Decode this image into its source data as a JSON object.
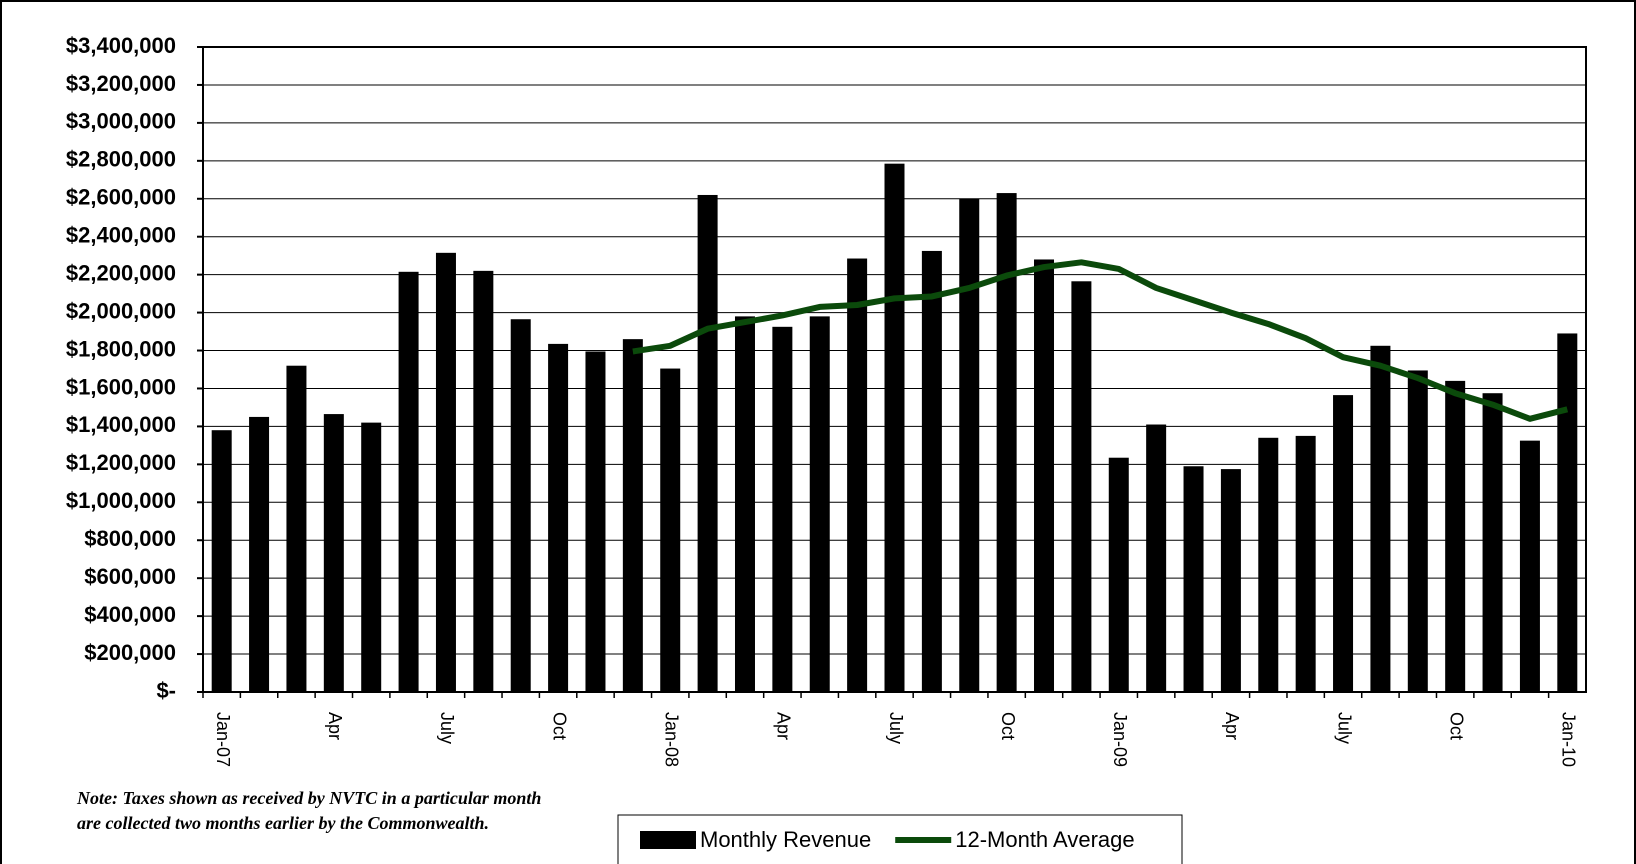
{
  "chart_data": {
    "type": "bar_line",
    "categories": [
      "Jan-07",
      null,
      null,
      "Apr",
      null,
      null,
      "July",
      null,
      null,
      "Oct",
      null,
      null,
      "Jan-08",
      null,
      null,
      "Apr",
      null,
      null,
      "July",
      null,
      null,
      "Oct",
      null,
      null,
      "Jan-09",
      null,
      null,
      "Apr",
      null,
      null,
      "July",
      null,
      null,
      "Oct",
      null,
      null,
      "Jan-10"
    ],
    "series": [
      {
        "name": "Monthly Revenue",
        "type": "bar",
        "color": "#000000",
        "values": [
          1380000,
          1450000,
          1720000,
          1465000,
          1420000,
          2215000,
          2315000,
          2220000,
          1965000,
          1835000,
          1795000,
          1860000,
          1705000,
          2620000,
          1980000,
          1925000,
          1980000,
          2285000,
          2785000,
          2325000,
          2600000,
          2630000,
          2280000,
          2165000,
          1235000,
          1410000,
          1190000,
          1175000,
          1340000,
          1350000,
          1565000,
          1825000,
          1695000,
          1640000,
          1575000,
          1325000,
          1890000
        ]
      },
      {
        "name": "12-Month Average",
        "type": "line",
        "color": "#0b4a0b",
        "values": [
          null,
          null,
          null,
          null,
          null,
          null,
          null,
          null,
          null,
          null,
          null,
          1795000,
          1825000,
          1915000,
          1950000,
          1985000,
          2030000,
          2040000,
          2075000,
          2085000,
          2130000,
          2195000,
          2240000,
          2265000,
          2230000,
          2130000,
          2065000,
          2000000,
          1940000,
          1865000,
          1765000,
          1720000,
          1655000,
          1575000,
          1515000,
          1440000,
          1490000
        ]
      }
    ],
    "ylim": [
      0,
      3400000
    ],
    "yticks": [
      {
        "value": 0,
        "label": "$-"
      },
      {
        "value": 200000,
        "label": "$200,000"
      },
      {
        "value": 400000,
        "label": "$400,000"
      },
      {
        "value": 600000,
        "label": "$600,000"
      },
      {
        "value": 800000,
        "label": "$800,000"
      },
      {
        "value": 1000000,
        "label": "$1,000,000"
      },
      {
        "value": 1200000,
        "label": "$1,200,000"
      },
      {
        "value": 1400000,
        "label": "$1,400,000"
      },
      {
        "value": 1600000,
        "label": "$1,600,000"
      },
      {
        "value": 1800000,
        "label": "$1,800,000"
      },
      {
        "value": 2000000,
        "label": "$2,000,000"
      },
      {
        "value": 2200000,
        "label": "$2,200,000"
      },
      {
        "value": 2400000,
        "label": "$2,400,000"
      },
      {
        "value": 2600000,
        "label": "$2,600,000"
      },
      {
        "value": 2800000,
        "label": "$2,800,000"
      },
      {
        "value": 3000000,
        "label": "$3,000,000"
      },
      {
        "value": 3200000,
        "label": "$3,200,000"
      },
      {
        "value": 3400000,
        "label": "$3,400,000"
      }
    ],
    "grid": true,
    "note": "Note: Taxes shown as received by NVTC in a particular month are collected two months earlier by the Commonwealth."
  }
}
